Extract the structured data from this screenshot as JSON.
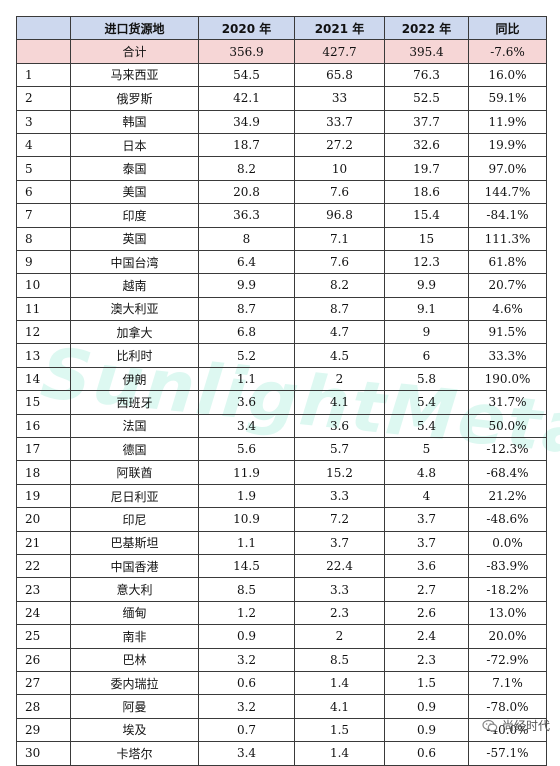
{
  "table": {
    "headers": [
      "",
      "进口货源地",
      "2020 年",
      "2021 年",
      "2022 年",
      "同比"
    ],
    "total": {
      "label": "合计",
      "y2020": "356.9",
      "y2021": "427.7",
      "y2022": "395.4",
      "yoy": "-7.6%"
    },
    "rows": [
      {
        "rank": "1",
        "name": "马来西亚",
        "y2020": "54.5",
        "y2021": "65.8",
        "y2022": "76.3",
        "yoy": "16.0%"
      },
      {
        "rank": "2",
        "name": "俄罗斯",
        "y2020": "42.1",
        "y2021": "33",
        "y2022": "52.5",
        "yoy": "59.1%"
      },
      {
        "rank": "3",
        "name": "韩国",
        "y2020": "34.9",
        "y2021": "33.7",
        "y2022": "37.7",
        "yoy": "11.9%"
      },
      {
        "rank": "4",
        "name": "日本",
        "y2020": "18.7",
        "y2021": "27.2",
        "y2022": "32.6",
        "yoy": "19.9%"
      },
      {
        "rank": "5",
        "name": "泰国",
        "y2020": "8.2",
        "y2021": "10",
        "y2022": "19.7",
        "yoy": "97.0%"
      },
      {
        "rank": "6",
        "name": "美国",
        "y2020": "20.8",
        "y2021": "7.6",
        "y2022": "18.6",
        "yoy": "144.7%"
      },
      {
        "rank": "7",
        "name": "印度",
        "y2020": "36.3",
        "y2021": "96.8",
        "y2022": "15.4",
        "yoy": "-84.1%"
      },
      {
        "rank": "8",
        "name": "英国",
        "y2020": "8",
        "y2021": "7.1",
        "y2022": "15",
        "yoy": "111.3%"
      },
      {
        "rank": "9",
        "name": "中国台湾",
        "y2020": "6.4",
        "y2021": "7.6",
        "y2022": "12.3",
        "yoy": "61.8%"
      },
      {
        "rank": "10",
        "name": "越南",
        "y2020": "9.9",
        "y2021": "8.2",
        "y2022": "9.9",
        "yoy": "20.7%"
      },
      {
        "rank": "11",
        "name": "澳大利亚",
        "y2020": "8.7",
        "y2021": "8.7",
        "y2022": "9.1",
        "yoy": "4.6%"
      },
      {
        "rank": "12",
        "name": "加拿大",
        "y2020": "6.8",
        "y2021": "4.7",
        "y2022": "9",
        "yoy": "91.5%"
      },
      {
        "rank": "13",
        "name": "比利时",
        "y2020": "5.2",
        "y2021": "4.5",
        "y2022": "6",
        "yoy": "33.3%"
      },
      {
        "rank": "14",
        "name": "伊朗",
        "y2020": "1.1",
        "y2021": "2",
        "y2022": "5.8",
        "yoy": "190.0%"
      },
      {
        "rank": "15",
        "name": "西班牙",
        "y2020": "3.6",
        "y2021": "4.1",
        "y2022": "5.4",
        "yoy": "31.7%"
      },
      {
        "rank": "16",
        "name": "法国",
        "y2020": "3.4",
        "y2021": "3.6",
        "y2022": "5.4",
        "yoy": "50.0%"
      },
      {
        "rank": "17",
        "name": "德国",
        "y2020": "5.6",
        "y2021": "5.7",
        "y2022": "5",
        "yoy": "-12.3%"
      },
      {
        "rank": "18",
        "name": "阿联酋",
        "y2020": "11.9",
        "y2021": "15.2",
        "y2022": "4.8",
        "yoy": "-68.4%"
      },
      {
        "rank": "19",
        "name": "尼日利亚",
        "y2020": "1.9",
        "y2021": "3.3",
        "y2022": "4",
        "yoy": "21.2%"
      },
      {
        "rank": "20",
        "name": "印尼",
        "y2020": "10.9",
        "y2021": "7.2",
        "y2022": "3.7",
        "yoy": "-48.6%"
      },
      {
        "rank": "21",
        "name": "巴基斯坦",
        "y2020": "1.1",
        "y2021": "3.7",
        "y2022": "3.7",
        "yoy": "0.0%"
      },
      {
        "rank": "22",
        "name": "中国香港",
        "y2020": "14.5",
        "y2021": "22.4",
        "y2022": "3.6",
        "yoy": "-83.9%"
      },
      {
        "rank": "23",
        "name": "意大利",
        "y2020": "8.5",
        "y2021": "3.3",
        "y2022": "2.7",
        "yoy": "-18.2%"
      },
      {
        "rank": "24",
        "name": "缅甸",
        "y2020": "1.2",
        "y2021": "2.3",
        "y2022": "2.6",
        "yoy": "13.0%"
      },
      {
        "rank": "25",
        "name": "南非",
        "y2020": "0.9",
        "y2021": "2",
        "y2022": "2.4",
        "yoy": "20.0%"
      },
      {
        "rank": "26",
        "name": "巴林",
        "y2020": "3.2",
        "y2021": "8.5",
        "y2022": "2.3",
        "yoy": "-72.9%"
      },
      {
        "rank": "27",
        "name": "委内瑞拉",
        "y2020": "0.6",
        "y2021": "1.4",
        "y2022": "1.5",
        "yoy": "7.1%"
      },
      {
        "rank": "28",
        "name": "阿曼",
        "y2020": "3.2",
        "y2021": "4.1",
        "y2022": "0.9",
        "yoy": "-78.0%"
      },
      {
        "rank": "29",
        "name": "埃及",
        "y2020": "0.7",
        "y2021": "1.5",
        "y2022": "0.9",
        "yoy": "-40.0%"
      },
      {
        "rank": "30",
        "name": "卡塔尔",
        "y2020": "3.4",
        "y2021": "1.4",
        "y2022": "0.6",
        "yoy": "-57.1%"
      }
    ]
  },
  "watermark": {
    "text": "SunlightMetal"
  },
  "badge": {
    "label": "尚经时代",
    "icon": "wechat-icon"
  },
  "colors": {
    "header_bg": "#cdd8ee",
    "total_bg": "#f6d6d6",
    "watermark": "#40d6b0"
  }
}
